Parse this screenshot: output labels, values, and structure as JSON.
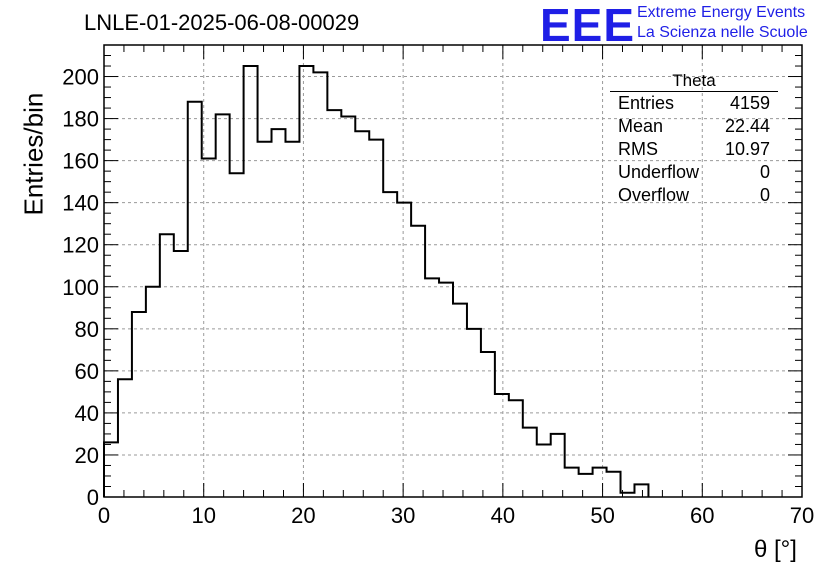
{
  "header": {
    "title": "LNLE-01-2025-06-08-00029"
  },
  "logo": {
    "mark": "EEE",
    "line1": "Extreme Energy Events",
    "line2": "La Scienza nelle Scuole",
    "color": "#1f1fe6"
  },
  "stats": {
    "title": "Theta",
    "rows": [
      {
        "label": "Entries",
        "value": "4159"
      },
      {
        "label": "Mean",
        "value": "22.44"
      },
      {
        "label": "RMS",
        "value": "10.97"
      },
      {
        "label": "Underflow",
        "value": "0"
      },
      {
        "label": "Overflow",
        "value": "0"
      }
    ]
  },
  "chart_data": {
    "type": "bar",
    "style": "step-histogram",
    "xlabel": "θ [°]",
    "ylabel": "Entries/bin",
    "xlim": [
      0,
      70
    ],
    "ylim": [
      0,
      215
    ],
    "grid": true,
    "bin_width": 1.4,
    "bin_edges_start": 0,
    "values": [
      26,
      56,
      88,
      100,
      125,
      117,
      188,
      161,
      182,
      154,
      205,
      169,
      175,
      169,
      205,
      202,
      184,
      181,
      174,
      170,
      145,
      140,
      129,
      104,
      102,
      92,
      80,
      69,
      49,
      46,
      33,
      25,
      30,
      14,
      11,
      14,
      12,
      2,
      6
    ],
    "x_ticks": [
      "0",
      "10",
      "20",
      "30",
      "40",
      "50",
      "60",
      "70"
    ],
    "y_ticks": [
      "0",
      "20",
      "40",
      "60",
      "80",
      "100",
      "120",
      "140",
      "160",
      "180",
      "200"
    ],
    "line_color": "#000000",
    "grid_color": "#9a9a9a"
  }
}
